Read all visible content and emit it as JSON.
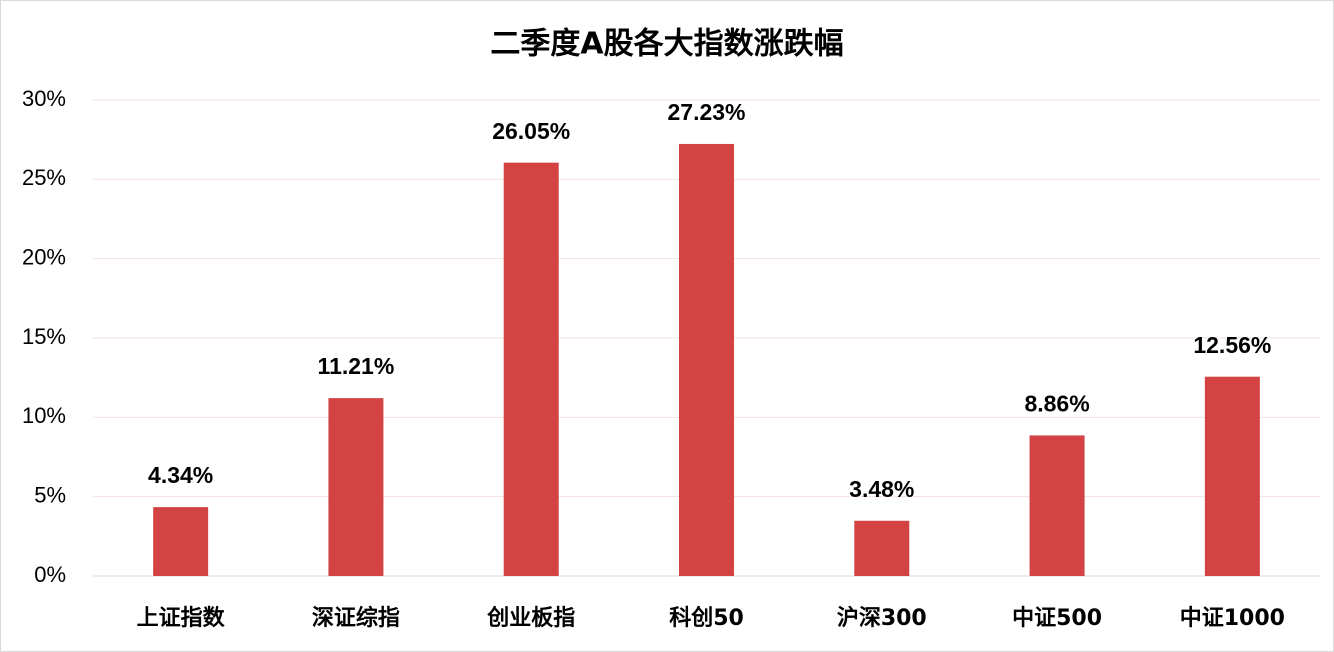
{
  "chart_data": {
    "type": "bar",
    "title": "二季度A股各大指数涨跌幅",
    "categories": [
      "上证指数",
      "深证综指",
      "创业板指",
      "科创50",
      "沪深300",
      "中证500",
      "中证1000"
    ],
    "values": [
      4.34,
      11.21,
      26.05,
      27.23,
      3.48,
      8.86,
      12.56
    ],
    "value_labels": [
      "4.34%",
      "11.21%",
      "26.05%",
      "27.23%",
      "3.48%",
      "8.86%",
      "12.56%"
    ],
    "color": "#d44343",
    "ylim": [
      0,
      30
    ],
    "yticks": [
      {
        "value": 0,
        "label": "0%"
      },
      {
        "value": 5,
        "label": "5%"
      },
      {
        "value": 10,
        "label": "10%"
      },
      {
        "value": 15,
        "label": "15%"
      },
      {
        "value": 20,
        "label": "20%"
      },
      {
        "value": 25,
        "label": "25%"
      },
      {
        "value": 30,
        "label": "30%"
      }
    ],
    "grid": true
  }
}
